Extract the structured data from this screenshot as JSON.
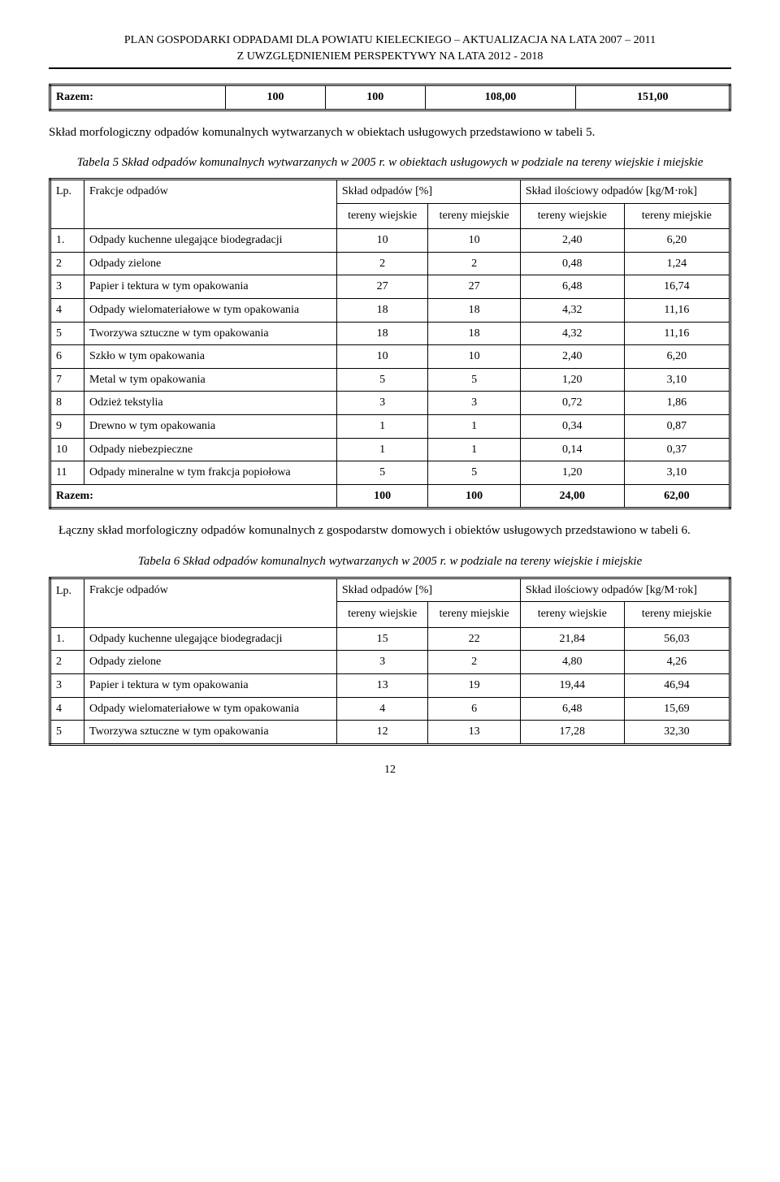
{
  "header": {
    "line1": "PLAN GOSPODARKI ODPADAMI DLA POWIATU KIELECKIEGO – AKTUALIZACJA NA LATA 2007 – 2011",
    "line2": "Z UWZGLĘDNIENIEM PERSPEKTYWY NA LATA 2012 - 2018"
  },
  "top_table": {
    "label": "Razem:",
    "c1": "100",
    "c2": "100",
    "c3": "108,00",
    "c4": "151,00"
  },
  "para1": "Skład morfologiczny odpadów komunalnych wytwarzanych w obiektach usługowych przedstawiono w tabeli 5.",
  "caption1": "Tabela 5 Skład odpadów komunalnych wytwarzanych w 2005 r. w obiektach usługowych w podziale na tereny wiejskie i miejskie",
  "table5": {
    "head": {
      "lp": "Lp.",
      "frakcje": "Frakcje odpadów",
      "sklad_pct": "Skład odpadów [%]",
      "sklad_il": "Skład ilościowy odpadów  [kg/M·rok]",
      "tw": "tereny wiejskie",
      "tm": "tereny miejskie",
      "tw2": "tereny wiejskie",
      "tm2": "tereny miejskie"
    },
    "rows": [
      {
        "lp": "1.",
        "name": "Odpady kuchenne ulegające biodegradacji",
        "a": "10",
        "b": "10",
        "c": "2,40",
        "d": "6,20"
      },
      {
        "lp": "2",
        "name": "Odpady zielone",
        "a": "2",
        "b": "2",
        "c": "0,48",
        "d": "1,24"
      },
      {
        "lp": "3",
        "name": "Papier i tektura w tym opakowania",
        "a": "27",
        "b": "27",
        "c": "6,48",
        "d": "16,74"
      },
      {
        "lp": "4",
        "name": "Odpady wielomateriałowe w tym opakowania",
        "a": "18",
        "b": "18",
        "c": "4,32",
        "d": "11,16"
      },
      {
        "lp": "5",
        "name": "Tworzywa sztuczne w tym opakowania",
        "a": "18",
        "b": "18",
        "c": "4,32",
        "d": "11,16"
      },
      {
        "lp": "6",
        "name": "Szkło w tym opakowania",
        "a": "10",
        "b": "10",
        "c": "2,40",
        "d": "6,20"
      },
      {
        "lp": "7",
        "name": "Metal w tym opakowania",
        "a": "5",
        "b": "5",
        "c": "1,20",
        "d": "3,10"
      },
      {
        "lp": "8",
        "name": "Odzież tekstylia",
        "a": "3",
        "b": "3",
        "c": "0,72",
        "d": "1,86"
      },
      {
        "lp": "9",
        "name": "Drewno w tym opakowania",
        "a": "1",
        "b": "1",
        "c": "0,34",
        "d": "0,87"
      },
      {
        "lp": "10",
        "name": "Odpady niebezpieczne",
        "a": "1",
        "b": "1",
        "c": "0,14",
        "d": "0,37"
      },
      {
        "lp": "11",
        "name": "Odpady mineralne w tym frakcja popiołowa",
        "a": "5",
        "b": "5",
        "c": "1,20",
        "d": "3,10"
      }
    ],
    "sum": {
      "label": "Razem:",
      "a": "100",
      "b": "100",
      "c": "24,00",
      "d": "62,00"
    }
  },
  "para2": "Łączny skład morfologiczny odpadów komunalnych z gospodarstw domowych i obiektów usługowych przedstawiono w tabeli 6.",
  "caption2": "Tabela 6 Skład odpadów komunalnych wytwarzanych w 2005 r. w podziale na tereny wiejskie i miejskie",
  "table6": {
    "head": {
      "lp": "Lp.",
      "frakcje": "Frakcje odpadów",
      "sklad_pct": "Skład odpadów [%]",
      "sklad_il": "Skład ilościowy odpadów [kg/M·rok]",
      "tw": "tereny wiejskie",
      "tm": "tereny miejskie",
      "tw2": "tereny wiejskie",
      "tm2": "tereny miejskie"
    },
    "rows": [
      {
        "lp": "1.",
        "name": "Odpady kuchenne ulegające biodegradacji",
        "a": "15",
        "b": "22",
        "c": "21,84",
        "d": "56,03"
      },
      {
        "lp": "2",
        "name": "Odpady zielone",
        "a": "3",
        "b": "2",
        "c": "4,80",
        "d": "4,26"
      },
      {
        "lp": "3",
        "name": "Papier i tektura w tym opakowania",
        "a": "13",
        "b": "19",
        "c": "19,44",
        "d": "46,94"
      },
      {
        "lp": "4",
        "name": "Odpady wielomateriałowe w tym opakowania",
        "a": "4",
        "b": "6",
        "c": "6,48",
        "d": "15,69"
      },
      {
        "lp": "5",
        "name": "Tworzywa sztuczne w tym opakowania",
        "a": "12",
        "b": "13",
        "c": "17,28",
        "d": "32,30"
      }
    ]
  },
  "page_number": "12",
  "style": {
    "font_family": "Times New Roman",
    "body_fontsize_pt": 11,
    "header_fontsize_pt": 10,
    "caption_style": "italic",
    "table_border": "double 3px #000",
    "cell_border": "1px solid #000",
    "text_color": "#000000",
    "background_color": "#ffffff"
  }
}
